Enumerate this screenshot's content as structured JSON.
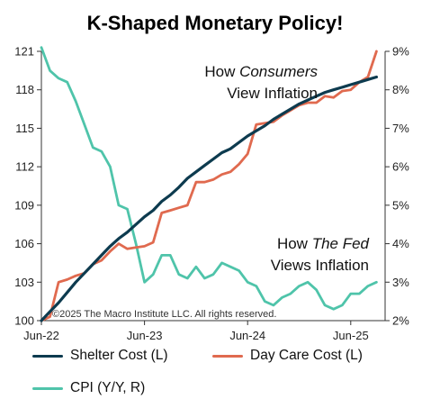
{
  "chart_data": {
    "type": "line",
    "title": "K-Shaped Monetary Policy!",
    "x_ticks": [
      "Jun-22",
      "Jun-23",
      "Jun-24",
      "Jun-25"
    ],
    "x_range": [
      "2022-06",
      "2025-10"
    ],
    "y_left": {
      "range": [
        100,
        121
      ],
      "ticks": [
        "100",
        "103",
        "106",
        "109",
        "112",
        "115",
        "118",
        "121"
      ]
    },
    "y_right": {
      "range": [
        2,
        9
      ],
      "ticks": [
        "2%",
        "3%",
        "4%",
        "5%",
        "6%",
        "7%",
        "8%",
        "9%"
      ]
    },
    "grid": false,
    "annotations": {
      "consumers_line1_a": "How ",
      "consumers_line1_b": "Consumers",
      "consumers_line2": "View Inflation",
      "fed_line1_a": "How ",
      "fed_line1_b": "The Fed",
      "fed_line2": "Views Inflation",
      "watermark": "©2025 The Macro Institute LLC. All rights reserved."
    },
    "legend_position": "bottom",
    "colors": {
      "shelter": "#0d3b4f",
      "daycare": "#e06a4f",
      "cpi": "#4fc4aa",
      "axis": "#333333"
    },
    "series": [
      {
        "name": "Shelter Cost (L)",
        "axis": "left",
        "x": [
          "2022-06",
          "2022-07",
          "2022-08",
          "2022-09",
          "2022-10",
          "2022-11",
          "2022-12",
          "2023-01",
          "2023-02",
          "2023-03",
          "2023-04",
          "2023-05",
          "2023-06",
          "2023-07",
          "2023-08",
          "2023-09",
          "2023-10",
          "2023-11",
          "2023-12",
          "2024-01",
          "2024-02",
          "2024-03",
          "2024-04",
          "2024-05",
          "2024-06",
          "2024-07",
          "2024-08",
          "2024-09",
          "2024-10",
          "2024-11",
          "2024-12",
          "2025-01",
          "2025-02",
          "2025-03",
          "2025-04",
          "2025-05",
          "2025-06",
          "2025-07",
          "2025-08",
          "2025-09"
        ],
        "values": [
          100.0,
          100.7,
          101.4,
          102.2,
          103.0,
          103.7,
          104.4,
          105.1,
          105.8,
          106.4,
          106.9,
          107.5,
          108.1,
          108.6,
          109.3,
          109.8,
          110.4,
          111.1,
          111.6,
          112.1,
          112.6,
          113.1,
          113.4,
          113.9,
          114.4,
          114.8,
          115.2,
          115.7,
          116.1,
          116.5,
          116.9,
          117.2,
          117.5,
          117.8,
          118.0,
          118.2,
          118.4,
          118.6,
          118.8,
          119.0
        ]
      },
      {
        "name": "Day Care Cost (L)",
        "axis": "left",
        "x": [
          "2022-06",
          "2022-07",
          "2022-08",
          "2022-09",
          "2022-10",
          "2022-11",
          "2022-12",
          "2023-01",
          "2023-02",
          "2023-03",
          "2023-04",
          "2023-05",
          "2023-06",
          "2023-07",
          "2023-08",
          "2023-09",
          "2023-10",
          "2023-11",
          "2023-12",
          "2024-01",
          "2024-02",
          "2024-03",
          "2024-04",
          "2024-05",
          "2024-06",
          "2024-07",
          "2024-08",
          "2024-09",
          "2024-10",
          "2024-11",
          "2024-12",
          "2025-01",
          "2025-02",
          "2025-03",
          "2025-04",
          "2025-05",
          "2025-06",
          "2025-07",
          "2025-08",
          "2025-09"
        ],
        "values": [
          100.0,
          100.3,
          103.0,
          103.2,
          103.5,
          103.7,
          104.4,
          104.7,
          105.4,
          106.0,
          105.6,
          105.7,
          105.8,
          106.1,
          108.4,
          108.6,
          108.8,
          109.0,
          110.8,
          110.8,
          111.0,
          111.4,
          111.6,
          112.2,
          113.0,
          115.3,
          115.4,
          115.5,
          116.0,
          116.4,
          116.8,
          117.0,
          117.0,
          117.5,
          117.4,
          117.9,
          118.0,
          118.6,
          119.0,
          121.0
        ]
      },
      {
        "name": "CPI (Y/Y, R)",
        "axis": "right",
        "x": [
          "2022-06",
          "2022-07",
          "2022-08",
          "2022-09",
          "2022-10",
          "2022-11",
          "2022-12",
          "2023-01",
          "2023-02",
          "2023-03",
          "2023-04",
          "2023-05",
          "2023-06",
          "2023-07",
          "2023-08",
          "2023-09",
          "2023-10",
          "2023-11",
          "2023-12",
          "2024-01",
          "2024-02",
          "2024-03",
          "2024-04",
          "2024-05",
          "2024-06",
          "2024-07",
          "2024-08",
          "2024-09",
          "2024-10",
          "2024-11",
          "2024-12",
          "2025-01",
          "2025-02",
          "2025-03",
          "2025-04",
          "2025-05",
          "2025-06",
          "2025-07",
          "2025-08",
          "2025-09"
        ],
        "values": [
          9.1,
          8.5,
          8.3,
          8.2,
          7.7,
          7.1,
          6.5,
          6.4,
          6.0,
          5.0,
          4.9,
          4.0,
          3.0,
          3.2,
          3.7,
          3.7,
          3.2,
          3.1,
          3.4,
          3.1,
          3.2,
          3.5,
          3.4,
          3.3,
          3.0,
          2.9,
          2.5,
          2.4,
          2.6,
          2.7,
          2.9,
          3.0,
          2.8,
          2.4,
          2.3,
          2.4,
          2.7,
          2.7,
          2.9,
          3.0
        ]
      }
    ]
  },
  "legend": {
    "shelter": "Shelter Cost (L)",
    "daycare": "Day Care Cost (L)",
    "cpi": "CPI (Y/Y, R)"
  }
}
